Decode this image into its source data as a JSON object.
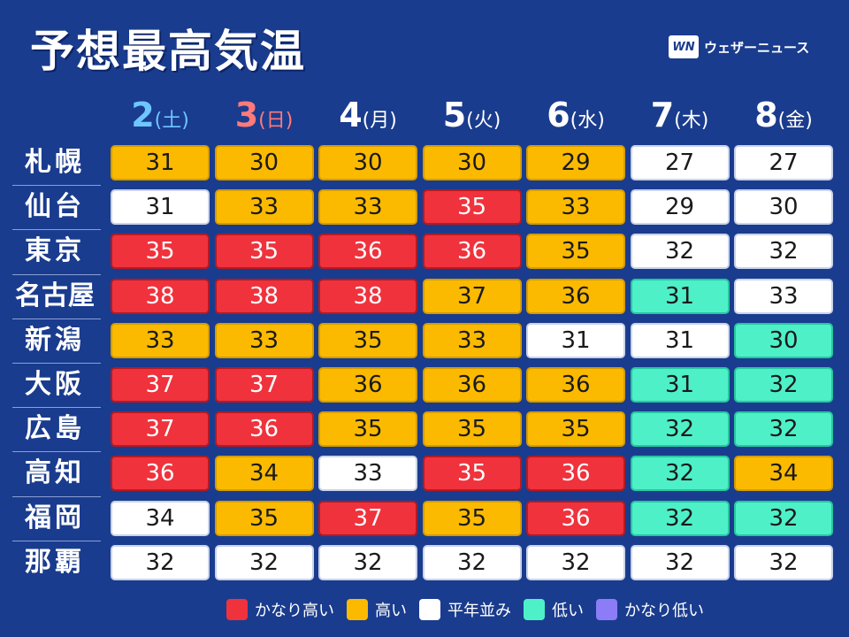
{
  "title": "予想最高気温",
  "brand": {
    "logo": "WN",
    "name": "ウェザーニュース"
  },
  "colors": {
    "very_high": "#f0323c",
    "high": "#fbba00",
    "normal": "#ffffff",
    "low": "#4ef0c8",
    "very_low": "#8c7cf8",
    "background": "#1a3c8e"
  },
  "days": [
    {
      "num": "2",
      "dow": "(土)",
      "type": "sat"
    },
    {
      "num": "3",
      "dow": "(日)",
      "type": "sun"
    },
    {
      "num": "4",
      "dow": "(月)",
      "type": "wd"
    },
    {
      "num": "5",
      "dow": "(火)",
      "type": "wd"
    },
    {
      "num": "6",
      "dow": "(水)",
      "type": "wd"
    },
    {
      "num": "7",
      "dow": "(木)",
      "type": "wd"
    },
    {
      "num": "8",
      "dow": "(金)",
      "type": "wd"
    }
  ],
  "cities": [
    {
      "name": "札幌",
      "temps": [
        "31",
        "30",
        "30",
        "30",
        "29",
        "27",
        "27"
      ],
      "levels": [
        "high",
        "high",
        "high",
        "high",
        "high",
        "norm",
        "norm"
      ]
    },
    {
      "name": "仙台",
      "temps": [
        "31",
        "33",
        "33",
        "35",
        "33",
        "29",
        "30"
      ],
      "levels": [
        "norm",
        "high",
        "high",
        "vhigh",
        "high",
        "norm",
        "norm"
      ]
    },
    {
      "name": "東京",
      "temps": [
        "35",
        "35",
        "36",
        "36",
        "35",
        "32",
        "32"
      ],
      "levels": [
        "vhigh",
        "vhigh",
        "vhigh",
        "vhigh",
        "high",
        "norm",
        "norm"
      ]
    },
    {
      "name": "名古屋",
      "temps": [
        "38",
        "38",
        "38",
        "37",
        "36",
        "31",
        "33"
      ],
      "levels": [
        "vhigh",
        "vhigh",
        "vhigh",
        "high",
        "high",
        "low",
        "norm"
      ]
    },
    {
      "name": "新潟",
      "temps": [
        "33",
        "33",
        "35",
        "33",
        "31",
        "31",
        "30"
      ],
      "levels": [
        "high",
        "high",
        "high",
        "high",
        "norm",
        "norm",
        "low"
      ]
    },
    {
      "name": "大阪",
      "temps": [
        "37",
        "37",
        "36",
        "36",
        "36",
        "31",
        "32"
      ],
      "levels": [
        "vhigh",
        "vhigh",
        "high",
        "high",
        "high",
        "low",
        "low"
      ]
    },
    {
      "name": "広島",
      "temps": [
        "37",
        "36",
        "35",
        "35",
        "35",
        "32",
        "32"
      ],
      "levels": [
        "vhigh",
        "vhigh",
        "high",
        "high",
        "high",
        "low",
        "low"
      ]
    },
    {
      "name": "高知",
      "temps": [
        "36",
        "34",
        "33",
        "35",
        "36",
        "32",
        "34"
      ],
      "levels": [
        "vhigh",
        "high",
        "norm",
        "vhigh",
        "vhigh",
        "low",
        "high"
      ]
    },
    {
      "name": "福岡",
      "temps": [
        "34",
        "35",
        "37",
        "35",
        "36",
        "32",
        "32"
      ],
      "levels": [
        "norm",
        "high",
        "vhigh",
        "high",
        "vhigh",
        "low",
        "low"
      ]
    },
    {
      "name": "那覇",
      "temps": [
        "32",
        "32",
        "32",
        "32",
        "32",
        "32",
        "32"
      ],
      "levels": [
        "norm",
        "norm",
        "norm",
        "norm",
        "norm",
        "norm",
        "norm"
      ]
    }
  ],
  "legend": [
    {
      "label": "かなり高い",
      "level": "vhigh"
    },
    {
      "label": "高い",
      "level": "high"
    },
    {
      "label": "平年並み",
      "level": "norm"
    },
    {
      "label": "低い",
      "level": "low"
    },
    {
      "label": "かなり低い",
      "level": "vlow"
    }
  ]
}
